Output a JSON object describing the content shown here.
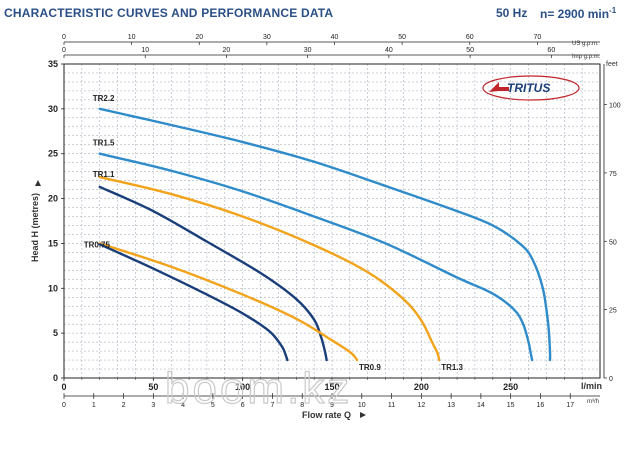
{
  "header": {
    "title": "CHARACTERISTIC CURVES AND PERFORMANCE DATA",
    "frequency": "50 Hz",
    "speed_prefix": "n= 2900 min",
    "speed_exp": "-1"
  },
  "brand": {
    "logo_text": "TRITUS",
    "logo_color": "#c0262c"
  },
  "watermark": "boom.kz",
  "chart_data": {
    "type": "line",
    "xlabel": "Flow rate  Q",
    "ylabel": "Head H (metres)",
    "ylabel_right": "feet",
    "xlim": [
      0,
      300
    ],
    "ylim": [
      0,
      35
    ],
    "grid": true,
    "axes": {
      "lmin": {
        "unit": "l/min",
        "ticks": [
          "0",
          "50",
          "100",
          "150",
          "200",
          "250"
        ],
        "range": [
          0,
          300
        ]
      },
      "m3h": {
        "unit": "m³/h",
        "ticks": [
          "0",
          "1",
          "2",
          "3",
          "4",
          "5",
          "6",
          "7",
          "8",
          "9",
          "10",
          "11",
          "12",
          "13",
          "14",
          "15",
          "16",
          "17"
        ]
      },
      "usgpm": {
        "unit": "US g.p.m.",
        "ticks": [
          "0",
          "10",
          "20",
          "30",
          "40",
          "50",
          "60",
          "70"
        ]
      },
      "impgpm": {
        "unit": "Imp g.p.m.",
        "ticks": [
          "0",
          "10",
          "20",
          "30",
          "40",
          "50",
          "60"
        ]
      },
      "head_m": {
        "ticks": [
          "0",
          "5",
          "10",
          "15",
          "20",
          "25",
          "30",
          "35"
        ]
      },
      "head_ft": {
        "ticks": [
          "0",
          "25",
          "50",
          "75",
          "100"
        ]
      }
    },
    "series": [
      {
        "name": "TR2.2",
        "color": "#2f8bc9",
        "x": [
          20,
          60,
          100,
          140,
          180,
          220,
          240,
          255,
          262,
          268,
          271,
          272,
          272
        ],
        "y": [
          30,
          28.2,
          26.3,
          24.1,
          21.4,
          18.6,
          17.0,
          15.0,
          13.3,
          10.0,
          6.0,
          3.0,
          2.0
        ]
      },
      {
        "name": "TR1.5",
        "color": "#2f8bc9",
        "x": [
          20,
          60,
          100,
          140,
          180,
          220,
          240,
          252,
          257,
          260,
          261,
          262
        ],
        "y": [
          25,
          23.1,
          20.8,
          18.0,
          15.0,
          11.2,
          9.4,
          7.6,
          6.0,
          4.0,
          3.0,
          2.0
        ]
      },
      {
        "name": "TR1.3",
        "color": "#f2a31c",
        "x": [
          20,
          60,
          100,
          140,
          170,
          190,
          200,
          206,
          209,
          210
        ],
        "y": [
          22.4,
          20.5,
          18.0,
          14.8,
          11.8,
          8.8,
          6.4,
          4.0,
          2.8,
          2.0
        ]
      },
      {
        "name": "TR1.1",
        "color": "#1a3e7a",
        "x": [
          20,
          50,
          80,
          110,
          130,
          140,
          144,
          146,
          147
        ],
        "y": [
          21.3,
          18.6,
          15.2,
          11.7,
          8.8,
          6.5,
          4.5,
          3.0,
          2.0
        ]
      },
      {
        "name": "TR0.9",
        "color": "#f2a31c",
        "x": [
          20,
          60,
          100,
          130,
          150,
          160,
          163,
          164
        ],
        "y": [
          15.0,
          12.4,
          9.3,
          6.6,
          4.2,
          2.9,
          2.3,
          2.0
        ]
      },
      {
        "name": "TR0.75",
        "color": "#1a3e7a",
        "x": [
          20,
          50,
          80,
          100,
          115,
          122,
          124,
          125
        ],
        "y": [
          14.9,
          12.2,
          9.3,
          7.2,
          5.2,
          3.5,
          2.6,
          2.0
        ]
      }
    ]
  }
}
